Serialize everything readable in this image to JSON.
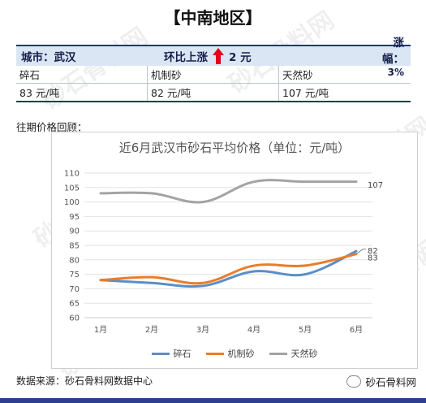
{
  "header": {
    "region_title": "【中南地区】"
  },
  "summary": {
    "city_label": "城市：武汉",
    "change_label": "环比上涨",
    "change_amount": "2 元",
    "amplitude_label": "涨幅：",
    "amplitude_value": "3%"
  },
  "table": {
    "rows": [
      [
        "碎石",
        "机制砂",
        "天然砂"
      ],
      [
        "83 元/吨",
        "82 元/吨",
        "107 元/吨"
      ]
    ]
  },
  "section_label": "往期价格回顾：",
  "footer": {
    "source": "数据来源：砂石骨料网数据中心",
    "brand": "砂石骨料网"
  },
  "watermark_text": "砂石骨料网",
  "chart_data": {
    "type": "line",
    "title": "近6月武汉市砂石平均价格（单位：元/吨）",
    "categories": [
      "1月",
      "2月",
      "3月",
      "4月",
      "5月",
      "6月"
    ],
    "ylim": [
      60,
      110
    ],
    "yticks": [
      60,
      65,
      70,
      75,
      80,
      85,
      90,
      95,
      100,
      105,
      110
    ],
    "grid": true,
    "legend_position": "bottom",
    "series": [
      {
        "name": "碎石",
        "color": "#5b8ec8",
        "values": [
          73,
          72,
          71,
          76,
          75,
          83
        ],
        "end_label": "83"
      },
      {
        "name": "机制砂",
        "color": "#e87d2b",
        "values": [
          73,
          74,
          72,
          78,
          78,
          82
        ],
        "end_label": "82"
      },
      {
        "name": "天然砂",
        "color": "#a3a3a3",
        "values": [
          103,
          103,
          100,
          107,
          107,
          107
        ],
        "end_label": "107"
      }
    ]
  }
}
